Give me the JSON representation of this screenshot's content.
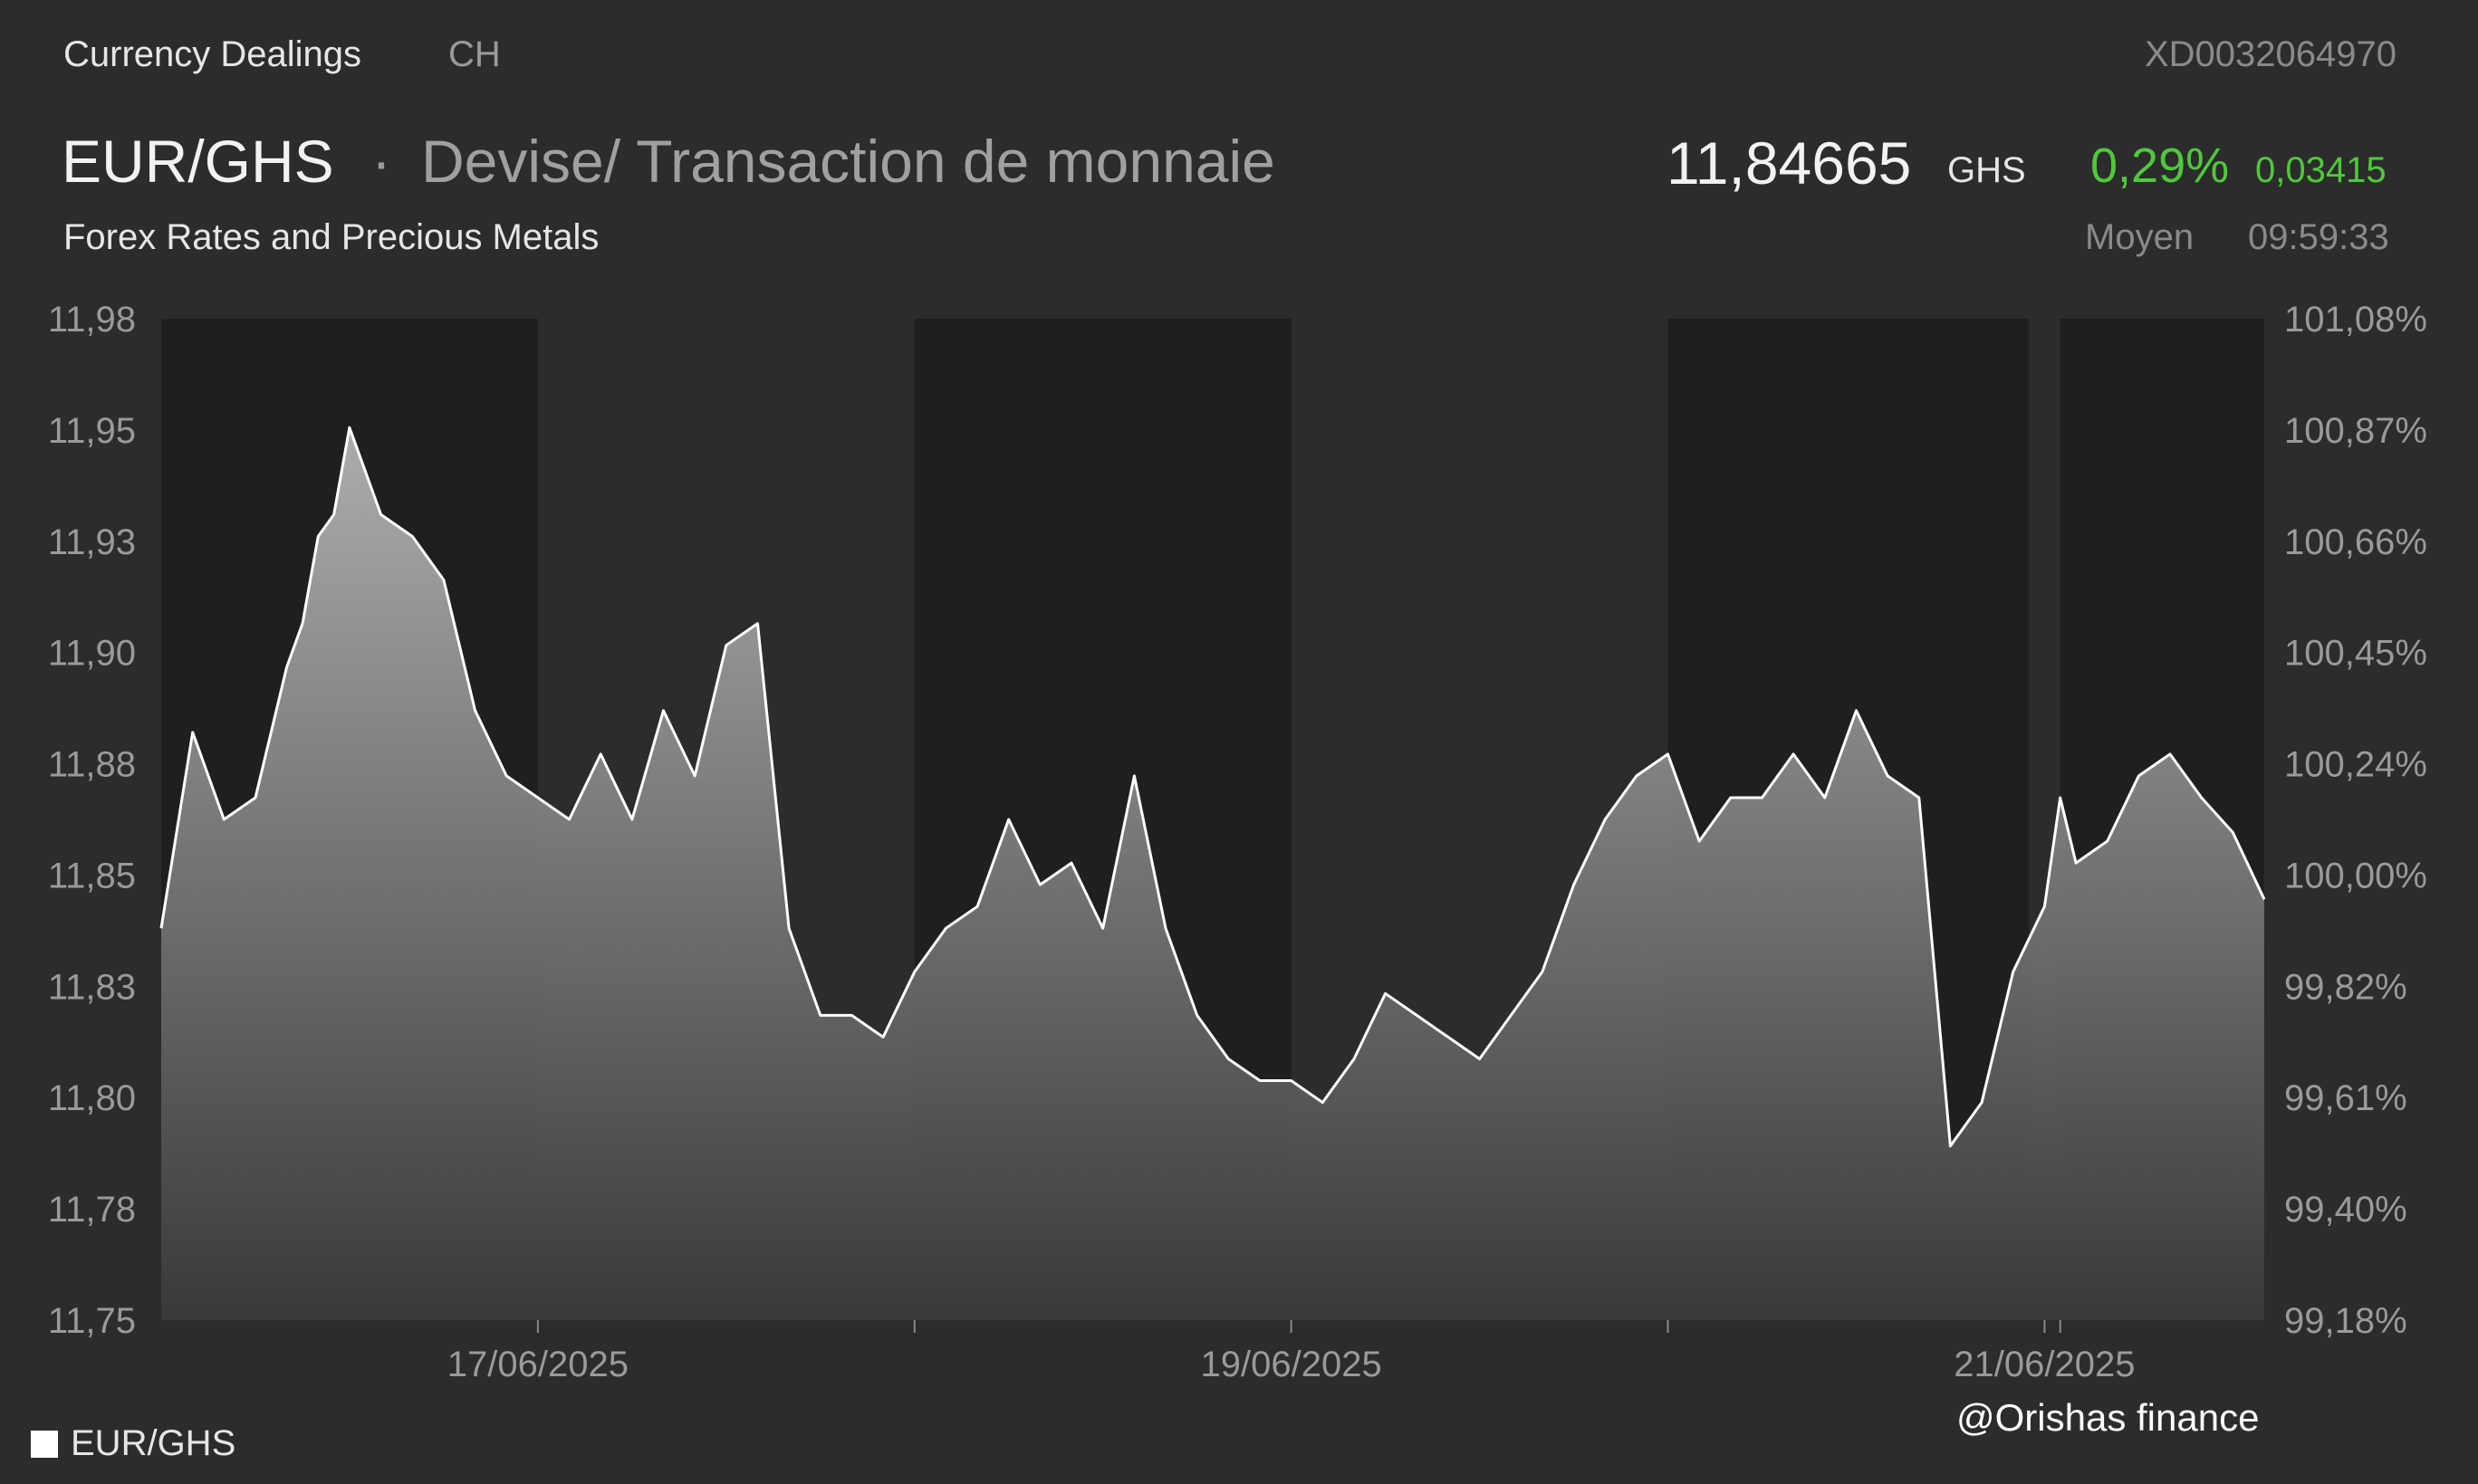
{
  "header": {
    "category": "Currency Dealings",
    "country": "CH",
    "isin": "XD0032064970",
    "pair": "EUR/GHS",
    "separator": "·",
    "description": "Devise/ Transaction de monnaie",
    "subtitle": "Forex Rates and Precious Metals",
    "price": "11,84665",
    "price_unit": "GHS",
    "change_pct": "0,29%",
    "change_abs": "0,03415",
    "price_type": "Moyen",
    "time": "09:59:33"
  },
  "colors": {
    "background": "#2c2c2c",
    "night_band": "#1f1f1f",
    "line": "#ffffff",
    "positive": "#4fc93a"
  },
  "legend": {
    "label": "EUR/GHS"
  },
  "watermark": "@Orishas finance",
  "chart_data": {
    "type": "area",
    "series": [
      {
        "name": "EUR/GHS",
        "color": "#ffffff"
      }
    ],
    "left_ticks": [
      "11,98",
      "11,95",
      "11,93",
      "11,90",
      "11,88",
      "11,85",
      "11,83",
      "11,80",
      "11,78",
      "11,75"
    ],
    "right_ticks": [
      "101,08%",
      "100,87%",
      "100,66%",
      "100,45%",
      "100,24%",
      "100,00%",
      "99,82%",
      "99,61%",
      "99,40%",
      "99,18%"
    ],
    "x_tick_labels": [
      "17/06/2025",
      "19/06/2025",
      "21/06/2025"
    ],
    "ylim": [
      11.75,
      11.98
    ],
    "x_domain": [
      "2025-06-16T00:00",
      "2025-06-21T14:00"
    ],
    "x": [
      "2025-06-16T00:00",
      "2025-06-16T02:00",
      "2025-06-16T04:00",
      "2025-06-16T06:00",
      "2025-06-16T08:00",
      "2025-06-16T09:00",
      "2025-06-16T10:00",
      "2025-06-16T11:00",
      "2025-06-16T12:00",
      "2025-06-16T14:00",
      "2025-06-16T16:00",
      "2025-06-16T18:00",
      "2025-06-16T20:00",
      "2025-06-16T22:00",
      "2025-06-17T00:00",
      "2025-06-17T02:00",
      "2025-06-17T04:00",
      "2025-06-17T06:00",
      "2025-06-17T08:00",
      "2025-06-17T10:00",
      "2025-06-17T12:00",
      "2025-06-17T14:00",
      "2025-06-17T16:00",
      "2025-06-17T18:00",
      "2025-06-17T20:00",
      "2025-06-17T22:00",
      "2025-06-18T00:00",
      "2025-06-18T02:00",
      "2025-06-18T04:00",
      "2025-06-18T06:00",
      "2025-06-18T08:00",
      "2025-06-18T10:00",
      "2025-06-18T12:00",
      "2025-06-18T14:00",
      "2025-06-18T16:00",
      "2025-06-18T18:00",
      "2025-06-18T20:00",
      "2025-06-18T22:00",
      "2025-06-19T00:00",
      "2025-06-19T02:00",
      "2025-06-19T04:00",
      "2025-06-19T06:00",
      "2025-06-19T08:00",
      "2025-06-19T10:00",
      "2025-06-19T12:00",
      "2025-06-19T14:00",
      "2025-06-19T16:00",
      "2025-06-19T18:00",
      "2025-06-19T20:00",
      "2025-06-19T22:00",
      "2025-06-20T00:00",
      "2025-06-20T02:00",
      "2025-06-20T04:00",
      "2025-06-20T06:00",
      "2025-06-20T08:00",
      "2025-06-20T10:00",
      "2025-06-20T12:00",
      "2025-06-20T14:00",
      "2025-06-20T16:00",
      "2025-06-20T18:00",
      "2025-06-20T20:00",
      "2025-06-20T22:00",
      "2025-06-21T00:00",
      "2025-06-21T01:00",
      "2025-06-21T02:00",
      "2025-06-21T04:00",
      "2025-06-21T06:00",
      "2025-06-21T08:00",
      "2025-06-21T10:00",
      "2025-06-21T12:00",
      "2025-06-21T14:00"
    ],
    "y": [
      11.84,
      11.885,
      11.865,
      11.87,
      11.9,
      11.91,
      11.93,
      11.935,
      11.955,
      11.935,
      11.93,
      11.92,
      11.89,
      11.875,
      11.87,
      11.865,
      11.88,
      11.865,
      11.89,
      11.875,
      11.905,
      11.91,
      11.84,
      11.82,
      11.82,
      11.815,
      11.83,
      11.84,
      11.845,
      11.865,
      11.85,
      11.855,
      11.84,
      11.875,
      11.84,
      11.82,
      11.81,
      11.805,
      11.805,
      11.8,
      11.81,
      11.825,
      11.82,
      11.815,
      11.81,
      11.82,
      11.83,
      11.85,
      11.865,
      11.875,
      11.88,
      11.86,
      11.87,
      11.87,
      11.88,
      11.87,
      11.89,
      11.875,
      11.87,
      11.79,
      11.8,
      11.83,
      11.845,
      11.87,
      11.855,
      11.86,
      11.875,
      11.88,
      11.87,
      11.862,
      11.84665
    ],
    "grid": false,
    "legend_position": "bottom-left"
  }
}
